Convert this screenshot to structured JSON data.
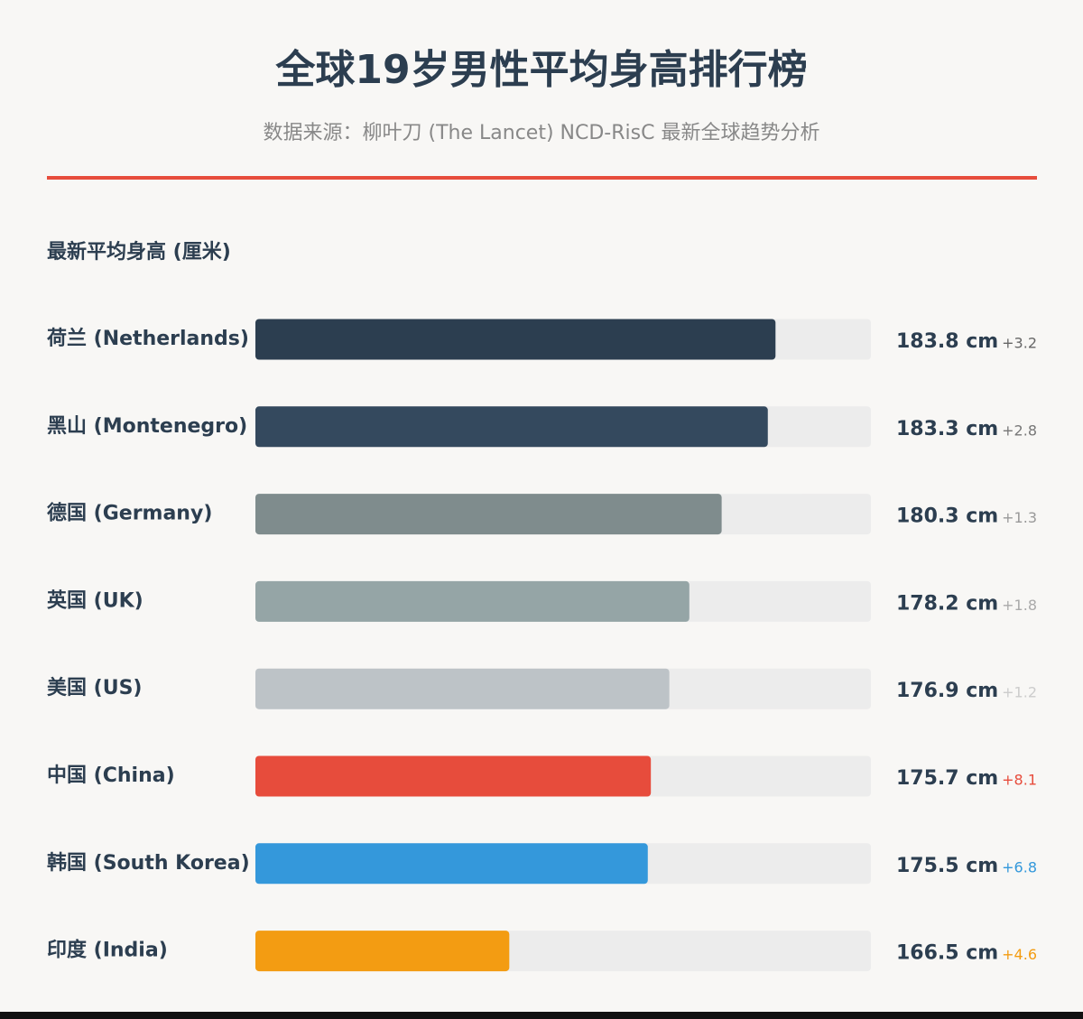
{
  "chart_data": {
    "type": "bar",
    "orientation": "horizontal",
    "title": "全球19岁男性平均身高排行榜",
    "subtitle": "数据来源：柳叶刀 (The Lancet) NCD-RisC 最新全球趋势分析",
    "x_label": "最新平均身高 (厘米)",
    "categories": [
      "荷兰 (Netherlands)",
      "黑山 (Montenegro)",
      "德国 (Germany)",
      "英国 (UK)",
      "美国 (US)",
      "中国 (China)",
      "韩国 (South Korea)",
      "印度 (India)"
    ],
    "values": [
      183.8,
      183.3,
      180.3,
      178.2,
      176.9,
      175.7,
      175.5,
      166.5
    ],
    "value_labels": [
      "183.8 cm",
      "183.3 cm",
      "180.3 cm",
      "178.2 cm",
      "176.9 cm",
      "175.7 cm",
      "175.5 cm",
      "166.5 cm"
    ],
    "changes": [
      "+3.2",
      "+2.8",
      "+1.3",
      "+1.8",
      "+1.2",
      "+8.1",
      "+6.8",
      "+4.6"
    ],
    "colors": [
      "#2c3e50",
      "#34495e",
      "#7f8c8d",
      "#95a5a6",
      "#bdc3c7",
      "#e74c3c",
      "#3498db",
      "#f39c12"
    ],
    "change_colors": [
      "#666666",
      "#777777",
      "#999999",
      "#aaaaaa",
      "#cccccc",
      "#e74c3c",
      "#3498db",
      "#f39c12"
    ],
    "xlim": [
      150,
      190
    ]
  }
}
